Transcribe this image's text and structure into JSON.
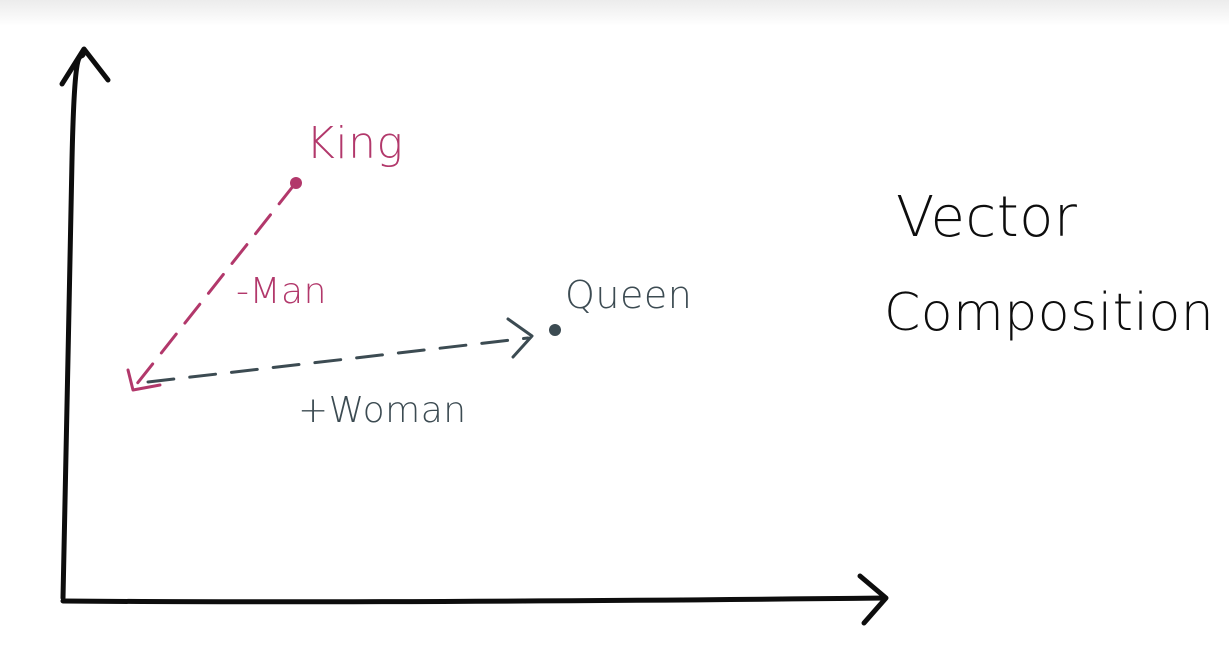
{
  "diagram": {
    "title": {
      "line1": "Vector",
      "line2": "Composition"
    },
    "labels": {
      "king": "King",
      "queen": "Queen",
      "minus_man": "-Man",
      "plus_woman": "+Woman"
    },
    "colors": {
      "background": "#ffffff",
      "ink": "#0d0d0d",
      "king_vector": "#b2386b",
      "queen_vector": "#3c4b52"
    }
  }
}
